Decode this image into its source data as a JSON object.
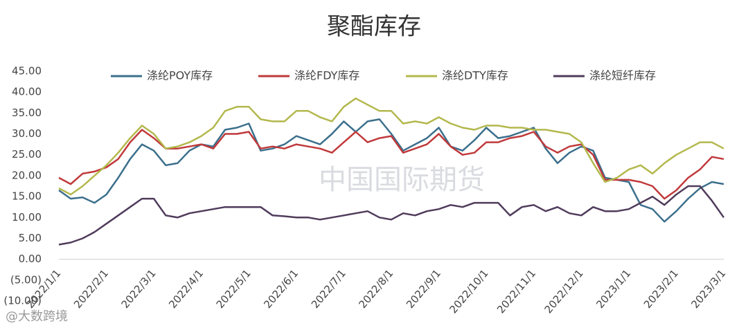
{
  "chart_data": {
    "type": "line",
    "title": "聚酯库存",
    "watermark": "中国国际期货",
    "corner_mark": "@大数跨境",
    "categories": [
      "2022/1/1",
      null,
      null,
      null,
      "2022/2/1",
      null,
      null,
      null,
      "2022/3/1",
      null,
      null,
      null,
      "2022/4/1",
      null,
      null,
      null,
      "2022/5/1",
      null,
      null,
      null,
      "2022/6/1",
      null,
      null,
      null,
      "2022/7/1",
      null,
      null,
      null,
      "2022/8/1",
      null,
      null,
      null,
      "2022/9/1",
      null,
      null,
      null,
      "2022/10/1",
      null,
      null,
      null,
      "2022/11/1",
      null,
      null,
      null,
      "2022/12/1",
      null,
      null,
      null,
      "2023/1/1",
      null,
      null,
      null,
      "2023/2/1",
      null,
      null,
      null,
      "2023/3/1"
    ],
    "ylim": [
      -10,
      45
    ],
    "yticks": [
      {
        "value": -10,
        "label": "(10.00)"
      },
      {
        "value": -5,
        "label": "(5.00)"
      },
      {
        "value": 0,
        "label": "0.00"
      },
      {
        "value": 5,
        "label": "5.00"
      },
      {
        "value": 10,
        "label": "10.00"
      },
      {
        "value": 15,
        "label": "15.00"
      },
      {
        "value": 20,
        "label": "20.00"
      },
      {
        "value": 25,
        "label": "25.00"
      },
      {
        "value": 30,
        "label": "30.00"
      },
      {
        "value": 35,
        "label": "35.00"
      },
      {
        "value": 40,
        "label": "40.00"
      },
      {
        "value": 45,
        "label": "45.00"
      }
    ],
    "grid": false,
    "series": [
      {
        "name": "涤纶POY库存",
        "color": "#3b6f8c",
        "values": [
          16.5,
          14.5,
          14.8,
          13.5,
          15.5,
          19.5,
          24,
          27.5,
          26,
          22.5,
          23,
          26,
          27.5,
          27,
          31,
          31.5,
          32.5,
          26,
          26.5,
          27.5,
          29.5,
          28.5,
          27.5,
          30,
          33,
          30.5,
          33,
          33.5,
          30,
          26,
          27.5,
          29,
          31.5,
          27,
          26,
          28.5,
          31.5,
          29,
          29.5,
          30.5,
          31.5,
          26.5,
          23,
          25.5,
          27,
          26,
          19.5,
          19,
          18.5,
          13,
          12,
          9,
          11.5,
          14.5,
          17,
          18.5,
          18
        ]
      },
      {
        "name": "涤纶FDY库存",
        "color": "#c0393b",
        "values": [
          19.5,
          18,
          20.5,
          21,
          22,
          24,
          28,
          31,
          29,
          26.5,
          26.5,
          27,
          27.5,
          26.5,
          30,
          30,
          30.5,
          26.5,
          27,
          26.5,
          27.5,
          27,
          26.5,
          25.5,
          28,
          30.5,
          28,
          29,
          29.5,
          25.5,
          26.5,
          27.5,
          30,
          27,
          25,
          25.5,
          28,
          28,
          29,
          29.5,
          30.5,
          27,
          25.5,
          27,
          27.5,
          25,
          19,
          19,
          19,
          18.5,
          17.5,
          14.5,
          16.5,
          19.5,
          21.5,
          24.5,
          24
        ]
      },
      {
        "name": "涤纶DTY库存",
        "color": "#b3b84c",
        "values": [
          17,
          15.5,
          17.5,
          20,
          22.5,
          25.5,
          29,
          32,
          30,
          26.5,
          27,
          28,
          29.5,
          31.5,
          35.5,
          36.5,
          36.5,
          33.5,
          33,
          33,
          35.5,
          35.5,
          34,
          33,
          36.5,
          38.5,
          37,
          35.5,
          35.5,
          32.5,
          33,
          32.5,
          34,
          32.5,
          31.5,
          31,
          32,
          32,
          31.5,
          31.5,
          31,
          31,
          30.5,
          30,
          28,
          23,
          18.5,
          19.5,
          21.5,
          22.5,
          20.5,
          23,
          25,
          26.5,
          28,
          28,
          26.5
        ]
      },
      {
        "name": "涤纶短纤库存",
        "color": "#4f3b5b",
        "values": [
          3.5,
          4,
          5,
          6.5,
          8.5,
          10.5,
          12.5,
          14.5,
          14.5,
          10.5,
          10,
          11,
          11.5,
          12,
          12.5,
          12.5,
          12.5,
          12.5,
          10.5,
          10.3,
          10,
          10,
          9.5,
          10,
          10.5,
          11,
          11.5,
          10,
          9.5,
          11,
          10.5,
          11.5,
          12,
          13,
          12.5,
          13.5,
          13.5,
          13.5,
          10.5,
          12.5,
          13,
          11.5,
          12.5,
          11,
          10.5,
          12.5,
          11.5,
          11.5,
          12,
          13.5,
          15,
          13,
          15.5,
          17.5,
          17.5,
          14,
          10
        ]
      }
    ]
  }
}
